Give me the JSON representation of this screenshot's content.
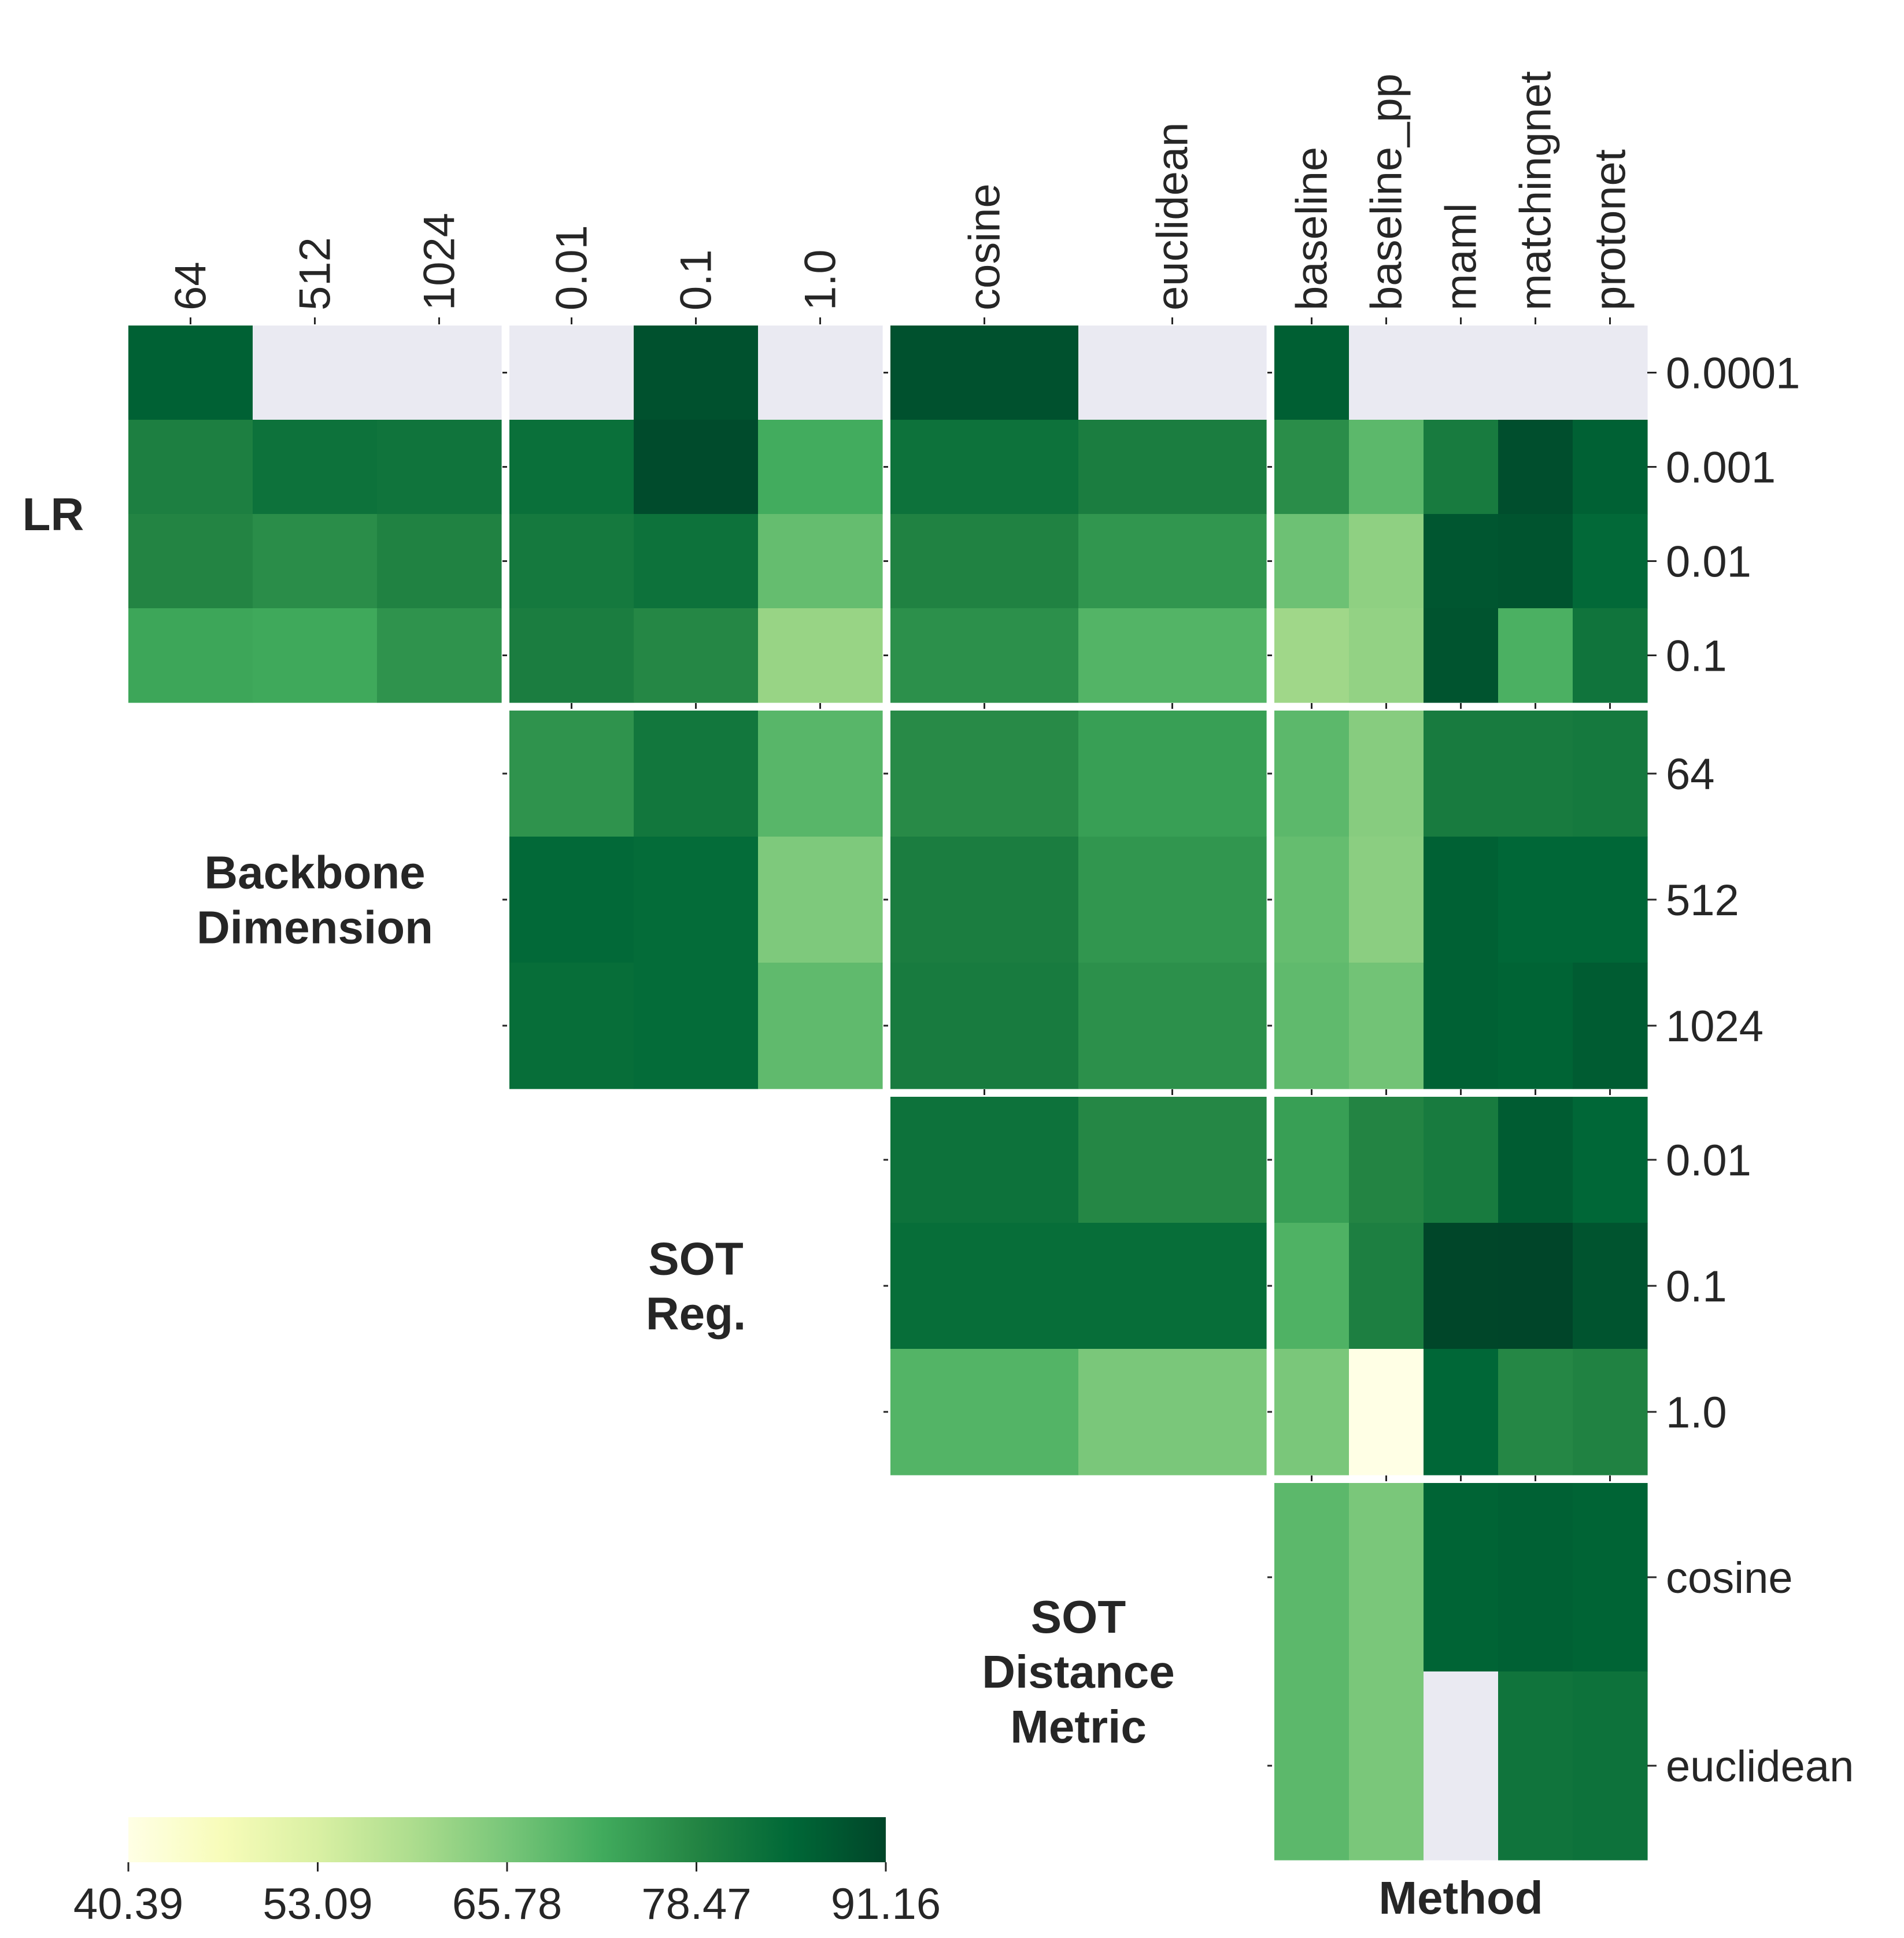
{
  "chart_data": {
    "type": "heatmap",
    "colormap": "Greens",
    "missing_color": "#eaeaf2",
    "color_range": [
      40.39,
      91.16
    ],
    "colorbar": {
      "ticks": [
        "40.39",
        "53.09",
        "65.78",
        "78.47",
        "91.16"
      ]
    },
    "groups": [
      {
        "key": "lr",
        "label": "LR",
        "levels": [
          "0.0001",
          "0.001",
          "0.01",
          "0.1"
        ]
      },
      {
        "key": "dim",
        "label": "Backbone Dimension",
        "label_lines": [
          "Backbone",
          "Dimension"
        ],
        "levels": [
          "64",
          "512",
          "1024"
        ]
      },
      {
        "key": "reg",
        "label": "SOT Reg.",
        "label_lines": [
          "SOT",
          "Reg."
        ],
        "levels": [
          "0.01",
          "0.1",
          "1.0"
        ]
      },
      {
        "key": "metric",
        "label": "SOT Distance Metric",
        "label_lines": [
          "SOT",
          "Distance",
          "Metric"
        ],
        "levels": [
          "cosine",
          "euclidean"
        ]
      },
      {
        "key": "method",
        "label": "Method",
        "label_lines": [
          "Method"
        ],
        "levels": [
          "baseline",
          "baseline_pp",
          "maml",
          "matchingnet",
          "protonet"
        ]
      }
    ],
    "blocks": [
      {
        "row": "lr",
        "col": "dim",
        "values": [
          [
            86.0,
            null,
            null
          ],
          [
            79.5,
            82.5,
            82.0
          ],
          [
            78.5,
            77.0,
            79.0
          ],
          [
            73.0,
            72.5,
            76.0
          ]
        ]
      },
      {
        "row": "lr",
        "col": "reg",
        "values": [
          [
            null,
            89.0,
            null
          ],
          [
            83.0,
            90.0,
            72.0
          ],
          [
            81.0,
            82.5,
            68.0
          ],
          [
            80.0,
            78.0,
            62.0
          ]
        ]
      },
      {
        "row": "lr",
        "col": "metric",
        "values": [
          [
            89.0,
            null
          ],
          [
            82.5,
            80.0
          ],
          [
            79.0,
            75.5
          ],
          [
            76.5,
            70.0
          ]
        ]
      },
      {
        "row": "lr",
        "col": "method",
        "values": [
          [
            86.5,
            null,
            null,
            null,
            null
          ],
          [
            77.0,
            69.0,
            80.5,
            89.5,
            86.0
          ],
          [
            67.0,
            63.0,
            88.0,
            88.5,
            84.5
          ],
          [
            61.0,
            62.5,
            88.5,
            71.0,
            82.0
          ]
        ]
      },
      {
        "row": "dim",
        "col": "reg",
        "values": [
          [
            76.0,
            81.5,
            69.5
          ],
          [
            84.5,
            84.0,
            65.0
          ],
          [
            83.5,
            84.0,
            68.5
          ]
        ]
      },
      {
        "row": "dim",
        "col": "metric",
        "values": [
          [
            77.5,
            74.0
          ],
          [
            80.0,
            75.5
          ],
          [
            80.5,
            76.5
          ]
        ]
      },
      {
        "row": "dim",
        "col": "method",
        "values": [
          [
            69.0,
            64.0,
            80.5,
            80.5,
            81.0
          ],
          [
            68.0,
            63.5,
            86.0,
            85.0,
            85.0
          ],
          [
            68.5,
            66.5,
            86.0,
            85.5,
            87.0
          ]
        ]
      },
      {
        "row": "reg",
        "col": "metric",
        "values": [
          [
            82.5,
            78.0
          ],
          [
            83.5,
            83.5
          ],
          [
            70.0,
            65.5
          ]
        ]
      },
      {
        "row": "reg",
        "col": "method",
        "values": [
          [
            74.0,
            78.5,
            80.5,
            87.0,
            85.0
          ],
          [
            70.5,
            79.5,
            91.0,
            91.16,
            88.5
          ],
          [
            65.5,
            40.39,
            85.0,
            78.0,
            79.0
          ]
        ]
      },
      {
        "row": "metric",
        "col": "method",
        "values": [
          [
            69.0,
            65.5,
            85.5,
            86.0,
            85.5
          ],
          [
            69.0,
            65.5,
            null,
            82.0,
            82.5
          ]
        ]
      }
    ]
  }
}
